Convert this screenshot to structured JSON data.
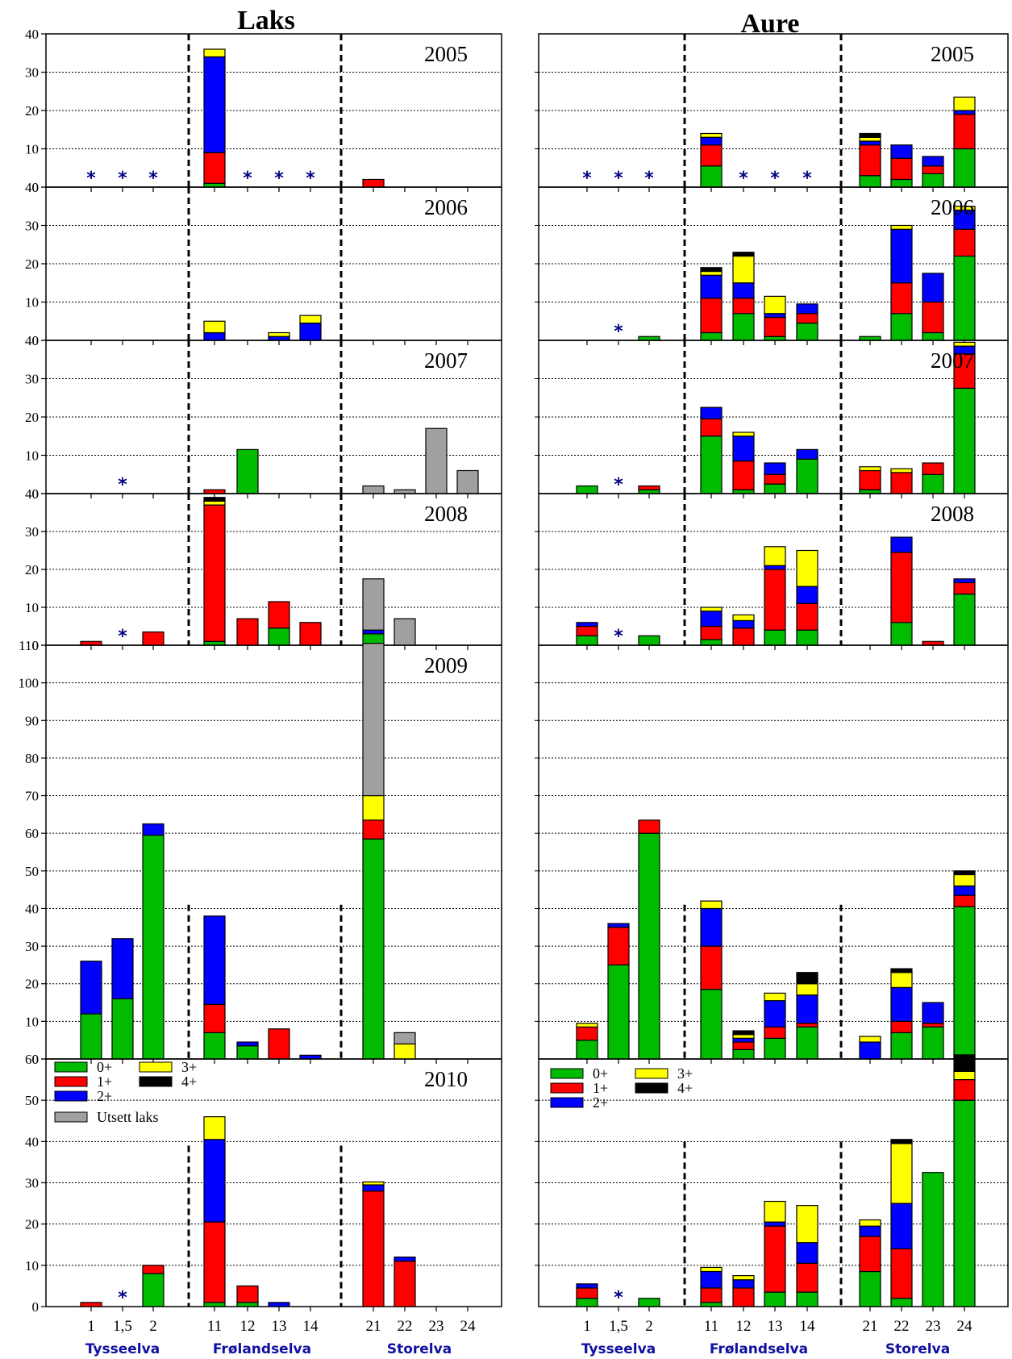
{
  "titles": {
    "left": "Laks",
    "right": "Aure"
  },
  "colors": {
    "0+": "#00bb00",
    "1+": "#ff0000",
    "2+": "#0000ff",
    "3+": "#ffff00",
    "4+": "#000000",
    "utsett": "#a0a0a0"
  },
  "legend": {
    "age_classes": [
      "0+",
      "1+",
      "2+",
      "3+",
      "4+"
    ],
    "utsett_label": "Utsett laks"
  },
  "rivers": [
    "Tysseelva",
    "Frølandselva",
    "Storelva"
  ],
  "stations": [
    "1",
    "1,5",
    "2",
    "11",
    "12",
    "13",
    "14",
    "21",
    "22",
    "23",
    "24"
  ],
  "chart_data": [
    {
      "type": "bar",
      "species": "Laks",
      "year": "2005",
      "ylim": [
        0,
        40
      ],
      "yticks": [
        0,
        10,
        20,
        30,
        40
      ],
      "stars": [
        "1",
        "1,5",
        "2",
        "12",
        "13",
        "14"
      ],
      "bars": [
        {
          "station": "11",
          "values": {
            "0+": 1,
            "1+": 8,
            "2+": 25,
            "3+": 2
          }
        },
        {
          "station": "21",
          "values": {
            "1+": 2
          }
        }
      ]
    },
    {
      "type": "bar",
      "species": "Aure",
      "year": "2005",
      "ylim": [
        0,
        40
      ],
      "yticks": [
        0,
        10,
        20,
        30,
        40
      ],
      "stars": [
        "1",
        "1,5",
        "2",
        "12",
        "13",
        "14"
      ],
      "bars": [
        {
          "station": "11",
          "values": {
            "0+": 5.5,
            "1+": 5.5,
            "2+": 2,
            "3+": 1
          }
        },
        {
          "station": "21",
          "values": {
            "0+": 3,
            "1+": 8,
            "2+": 1,
            "3+": 1,
            "4+": 1
          }
        },
        {
          "station": "22",
          "values": {
            "0+": 2,
            "1+": 5.5,
            "2+": 3.5
          }
        },
        {
          "station": "23",
          "values": {
            "0+": 3.5,
            "1+": 2,
            "2+": 2.5
          }
        },
        {
          "station": "24",
          "values": {
            "0+": 10,
            "1+": 9,
            "2+": 1,
            "3+": 3.5
          }
        }
      ]
    },
    {
      "type": "bar",
      "species": "Laks",
      "year": "2006",
      "ylim": [
        0,
        40
      ],
      "yticks": [
        0,
        10,
        20,
        30,
        40
      ],
      "stars": [],
      "bars": [
        {
          "station": "11",
          "values": {
            "2+": 2,
            "3+": 3
          }
        },
        {
          "station": "13",
          "values": {
            "2+": 1,
            "3+": 1
          }
        },
        {
          "station": "14",
          "values": {
            "2+": 4.5,
            "3+": 2
          }
        }
      ]
    },
    {
      "type": "bar",
      "species": "Aure",
      "year": "2006",
      "ylim": [
        0,
        40
      ],
      "yticks": [
        0,
        10,
        20,
        30,
        40
      ],
      "stars": [
        "1,5"
      ],
      "bars": [
        {
          "station": "2",
          "values": {
            "0+": 1
          }
        },
        {
          "station": "11",
          "values": {
            "0+": 2,
            "1+": 9,
            "2+": 6,
            "3+": 1,
            "4+": 1
          }
        },
        {
          "station": "12",
          "values": {
            "0+": 7,
            "1+": 4,
            "2+": 4,
            "3+": 7,
            "4+": 1
          }
        },
        {
          "station": "13",
          "values": {
            "0+": 1,
            "1+": 5,
            "2+": 1,
            "3+": 4.5
          }
        },
        {
          "station": "14",
          "values": {
            "0+": 4.5,
            "1+": 2.5,
            "2+": 2.5
          }
        },
        {
          "station": "21",
          "values": {
            "0+": 1
          }
        },
        {
          "station": "22",
          "values": {
            "0+": 7,
            "1+": 8,
            "2+": 14,
            "3+": 1
          }
        },
        {
          "station": "23",
          "values": {
            "0+": 2,
            "1+": 8,
            "2+": 7.5
          }
        },
        {
          "station": "24",
          "values": {
            "0+": 22,
            "1+": 7,
            "2+": 5,
            "3+": 1
          }
        }
      ]
    },
    {
      "type": "bar",
      "species": "Laks",
      "year": "2007",
      "ylim": [
        0,
        40
      ],
      "yticks": [
        0,
        10,
        20,
        30,
        40
      ],
      "stars": [
        "1,5"
      ],
      "bars": [
        {
          "station": "11",
          "values": {
            "1+": 1
          }
        },
        {
          "station": "12",
          "values": {
            "0+": 11.5
          }
        },
        {
          "station": "21",
          "values": {
            "utsett": 2
          }
        },
        {
          "station": "22",
          "values": {
            "utsett": 1
          }
        },
        {
          "station": "23",
          "values": {
            "utsett": 17
          }
        },
        {
          "station": "24",
          "values": {
            "utsett": 6
          }
        }
      ]
    },
    {
      "type": "bar",
      "species": "Aure",
      "year": "2007",
      "ylim": [
        0,
        40
      ],
      "yticks": [
        0,
        10,
        20,
        30,
        40
      ],
      "stars": [
        "1,5"
      ],
      "bars": [
        {
          "station": "1",
          "values": {
            "0+": 2
          }
        },
        {
          "station": "2",
          "values": {
            "0+": 1,
            "1+": 1
          }
        },
        {
          "station": "11",
          "values": {
            "0+": 15,
            "1+": 4.5,
            "2+": 3
          }
        },
        {
          "station": "12",
          "values": {
            "0+": 1,
            "1+": 7.5,
            "2+": 6.5,
            "3+": 1
          }
        },
        {
          "station": "13",
          "values": {
            "0+": 2.5,
            "1+": 2.5,
            "2+": 3
          }
        },
        {
          "station": "14",
          "values": {
            "0+": 9,
            "2+": 2.5
          }
        },
        {
          "station": "21",
          "values": {
            "0+": 1,
            "1+": 5,
            "3+": 1
          }
        },
        {
          "station": "22",
          "values": {
            "1+": 5.5,
            "3+": 1
          }
        },
        {
          "station": "23",
          "values": {
            "0+": 5,
            "1+": 3
          }
        },
        {
          "station": "24",
          "values": {
            "0+": 27.5,
            "1+": 9,
            "2+": 2,
            "3+": 1
          }
        }
      ]
    },
    {
      "type": "bar",
      "species": "Laks",
      "year": "2008",
      "ylim": [
        0,
        40
      ],
      "yticks": [
        0,
        10,
        20,
        30,
        40
      ],
      "stars": [
        "1,5"
      ],
      "bars": [
        {
          "station": "1",
          "values": {
            "1+": 1
          }
        },
        {
          "station": "2",
          "values": {
            "1+": 3.5
          }
        },
        {
          "station": "11",
          "values": {
            "0+": 1,
            "1+": 36,
            "3+": 1,
            "4+": 1
          }
        },
        {
          "station": "12",
          "values": {
            "1+": 7
          }
        },
        {
          "station": "13",
          "values": {
            "0+": 4.5,
            "1+": 7
          }
        },
        {
          "station": "14",
          "values": {
            "1+": 6
          }
        },
        {
          "station": "21",
          "values": {
            "0+": 3,
            "2+": 1,
            "utsett": 13.5
          }
        },
        {
          "station": "22",
          "values": {
            "utsett": 7
          }
        }
      ]
    },
    {
      "type": "bar",
      "species": "Aure",
      "year": "2008",
      "ylim": [
        0,
        40
      ],
      "yticks": [
        0,
        10,
        20,
        30,
        40
      ],
      "stars": [
        "1,5"
      ],
      "bars": [
        {
          "station": "1",
          "values": {
            "0+": 2.5,
            "1+": 2.5,
            "2+": 1
          }
        },
        {
          "station": "2",
          "values": {
            "0+": 2.5
          }
        },
        {
          "station": "11",
          "values": {
            "0+": 1.5,
            "1+": 3.5,
            "2+": 4,
            "3+": 1
          }
        },
        {
          "station": "12",
          "values": {
            "1+": 4.5,
            "2+": 2,
            "3+": 1.5
          }
        },
        {
          "station": "13",
          "values": {
            "0+": 4,
            "1+": 16,
            "2+": 1,
            "3+": 5
          }
        },
        {
          "station": "14",
          "values": {
            "0+": 4,
            "1+": 7,
            "2+": 4.5,
            "3+": 9.5
          }
        },
        {
          "station": "22",
          "values": {
            "0+": 6,
            "1+": 18.5,
            "2+": 4
          }
        },
        {
          "station": "23",
          "values": {
            "1+": 1
          }
        },
        {
          "station": "24",
          "values": {
            "0+": 13.5,
            "1+": 3,
            "2+": 1
          }
        }
      ]
    },
    {
      "type": "bar",
      "species": "Laks",
      "year": "2009",
      "ylim": [
        0,
        110
      ],
      "yticks": [
        0,
        10,
        20,
        30,
        40,
        50,
        60,
        70,
        80,
        90,
        100,
        110
      ],
      "stars": [],
      "bars": [
        {
          "station": "1",
          "values": {
            "0+": 12,
            "2+": 14
          }
        },
        {
          "station": "1,5",
          "values": {
            "0+": 16,
            "2+": 16
          }
        },
        {
          "station": "2",
          "values": {
            "0+": 59.5,
            "2+": 3
          }
        },
        {
          "station": "11",
          "values": {
            "0+": 7,
            "1+": 7.5,
            "2+": 23.5
          }
        },
        {
          "station": "12",
          "values": {
            "0+": 3.5,
            "2+": 1
          }
        },
        {
          "station": "13",
          "values": {
            "1+": 8
          }
        },
        {
          "station": "14",
          "values": {
            "2+": 1
          }
        },
        {
          "station": "21",
          "values": {
            "0+": 58.5,
            "1+": 5,
            "3+": 6.5,
            "utsett": 40.5
          }
        },
        {
          "station": "22",
          "values": {
            "3+": 4,
            "utsett": 3
          }
        }
      ]
    },
    {
      "type": "bar",
      "species": "Aure",
      "year": "",
      "ylim": [
        0,
        110
      ],
      "yticks": [
        0,
        10,
        20,
        30,
        40,
        50,
        60,
        70,
        80,
        90,
        100,
        110
      ],
      "stars": [],
      "bars": [
        {
          "station": "1",
          "values": {
            "0+": 5,
            "1+": 3.5,
            "3+": 1
          }
        },
        {
          "station": "1,5",
          "values": {
            "0+": 25,
            "1+": 10,
            "2+": 1
          }
        },
        {
          "station": "2",
          "values": {
            "0+": 60,
            "1+": 3.5
          }
        },
        {
          "station": "11",
          "values": {
            "0+": 18.5,
            "1+": 11.5,
            "2+": 10,
            "3+": 2
          }
        },
        {
          "station": "12",
          "values": {
            "0+": 2.5,
            "1+": 2,
            "2+": 1,
            "3+": 1,
            "4+": 1
          }
        },
        {
          "station": "13",
          "values": {
            "0+": 5.5,
            "1+": 3,
            "2+": 7,
            "3+": 2
          }
        },
        {
          "station": "14",
          "values": {
            "0+": 8.5,
            "1+": 1,
            "2+": 7.5,
            "3+": 3,
            "4+": 3
          }
        },
        {
          "station": "21",
          "values": {
            "2+": 4.5,
            "3+": 1.5
          }
        },
        {
          "station": "22",
          "values": {
            "0+": 7,
            "1+": 3,
            "2+": 9,
            "3+": 4,
            "4+": 1
          }
        },
        {
          "station": "23",
          "values": {
            "0+": 8.5,
            "1+": 1,
            "2+": 5.5
          }
        },
        {
          "station": "24",
          "values": {
            "0+": 40.5,
            "1+": 3,
            "2+": 2.5,
            "3+": 3,
            "4+": 1
          }
        }
      ]
    },
    {
      "type": "bar",
      "species": "Laks",
      "year": "2010",
      "ylim": [
        0,
        60
      ],
      "yticks": [
        0,
        10,
        20,
        30,
        40,
        50,
        60
      ],
      "stars": [
        "1,5"
      ],
      "bars": [
        {
          "station": "1",
          "values": {
            "1+": 1
          }
        },
        {
          "station": "2",
          "values": {
            "0+": 8,
            "1+": 2
          }
        },
        {
          "station": "11",
          "values": {
            "0+": 1,
            "1+": 19.5,
            "2+": 20,
            "3+": 5.5
          }
        },
        {
          "station": "12",
          "values": {
            "0+": 1,
            "1+": 4
          }
        },
        {
          "station": "13",
          "values": {
            "2+": 1
          }
        },
        {
          "station": "21",
          "values": {
            "1+": 28,
            "2+": 1.5,
            "3+": 0.7
          }
        },
        {
          "station": "22",
          "values": {
            "1+": 11,
            "2+": 1
          }
        }
      ]
    },
    {
      "type": "bar",
      "species": "Aure",
      "year": "",
      "ylim": [
        0,
        60
      ],
      "yticks": [
        0,
        10,
        20,
        30,
        40,
        50,
        60
      ],
      "stars": [
        "1,5"
      ],
      "bars": [
        {
          "station": "1",
          "values": {
            "0+": 2,
            "1+": 2.5,
            "2+": 1
          }
        },
        {
          "station": "2",
          "values": {
            "0+": 2
          }
        },
        {
          "station": "11",
          "values": {
            "0+": 1,
            "1+": 3.5,
            "2+": 4,
            "3+": 1
          }
        },
        {
          "station": "12",
          "values": {
            "1+": 4.5,
            "2+": 2,
            "3+": 1
          }
        },
        {
          "station": "13",
          "values": {
            "0+": 3.5,
            "1+": 16,
            "2+": 1,
            "3+": 5
          }
        },
        {
          "station": "14",
          "values": {
            "0+": 3.5,
            "1+": 7,
            "2+": 5,
            "3+": 9
          }
        },
        {
          "station": "21",
          "values": {
            "0+": 8.5,
            "1+": 8.5,
            "2+": 2.5,
            "3+": 1.5
          }
        },
        {
          "station": "22",
          "values": {
            "0+": 2,
            "1+": 12,
            "2+": 11,
            "3+": 14.5,
            "4+": 1
          }
        },
        {
          "station": "23",
          "values": {
            "0+": 32.5
          }
        },
        {
          "station": "24",
          "values": {
            "0+": 50,
            "1+": 5,
            "3+": 2,
            "4+": 4
          }
        }
      ]
    }
  ]
}
